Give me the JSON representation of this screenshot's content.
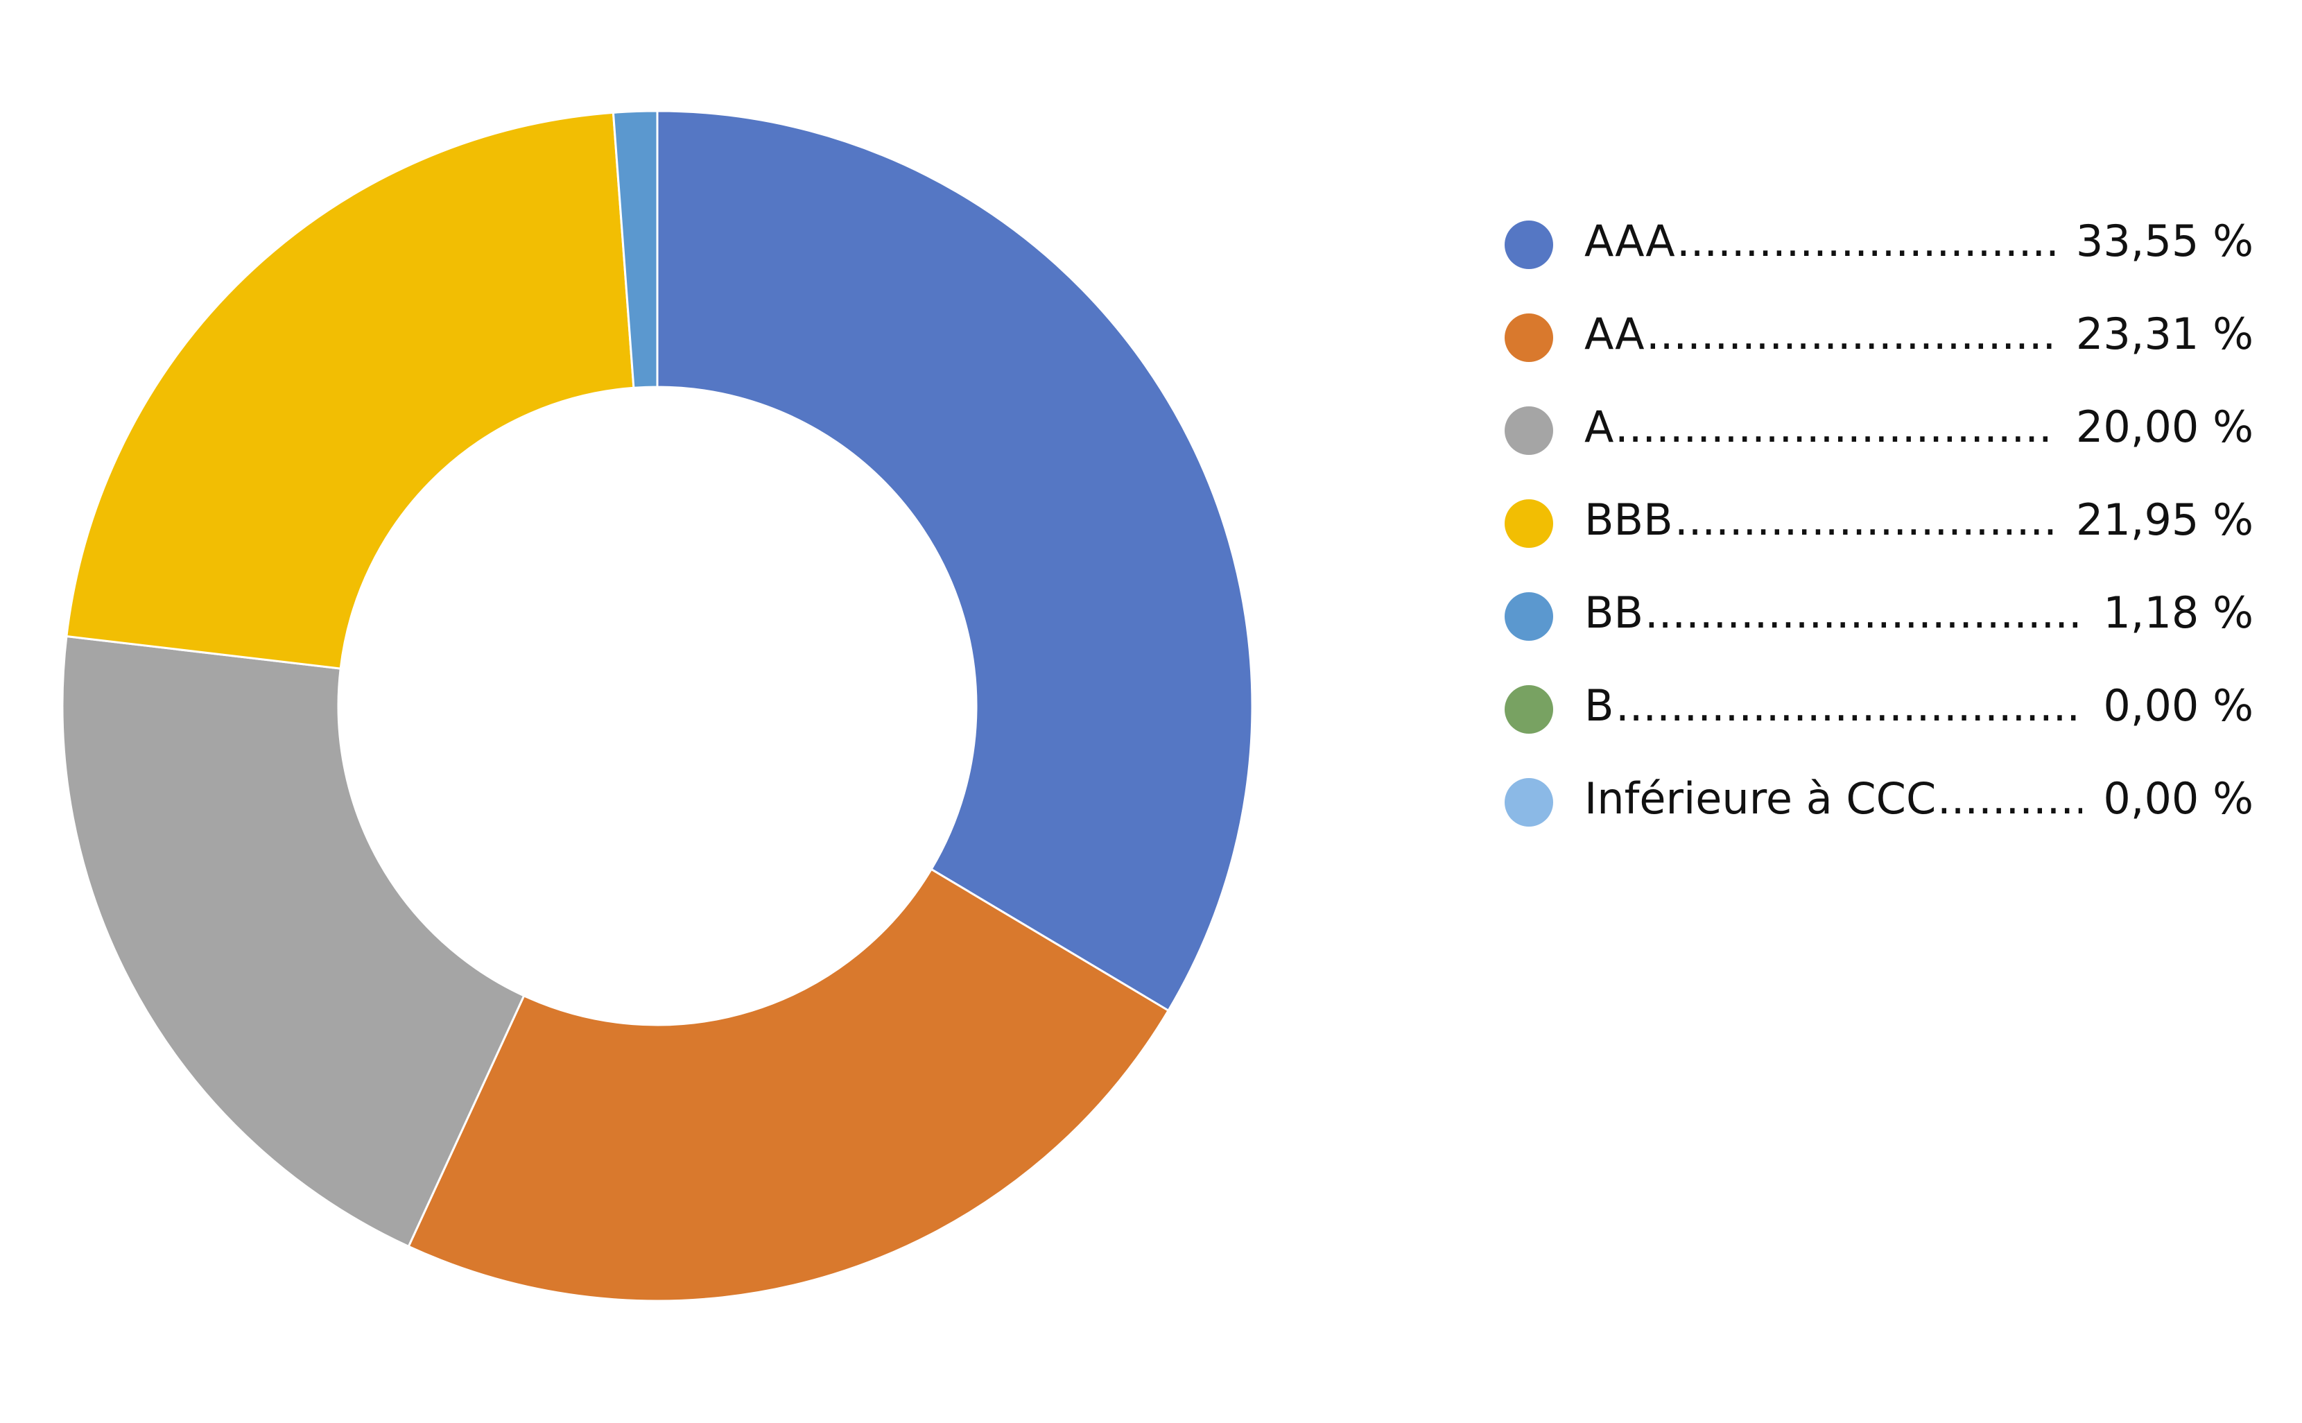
{
  "chart_data": {
    "type": "pie",
    "donut": true,
    "title": "",
    "categories": [
      "AAA",
      "AA",
      "A",
      "BBB",
      "BB",
      "B",
      "Inférieure à CCC"
    ],
    "values": [
      33.55,
      23.31,
      20.0,
      21.95,
      1.18,
      0.0,
      0.0
    ],
    "value_labels": [
      "33,55 %",
      "23,31 %",
      "20,00 %",
      "21,95 %",
      "1,18 %",
      "0,00 %",
      "0,00 %"
    ],
    "colors": [
      "#5577C4",
      "#D9792D",
      "#A5A5A5",
      "#F2BE03",
      "#5B98CF",
      "#78A262",
      "#8BB9E6"
    ],
    "legend_position": "right",
    "start_angle_deg": 0,
    "direction": "clockwise"
  }
}
